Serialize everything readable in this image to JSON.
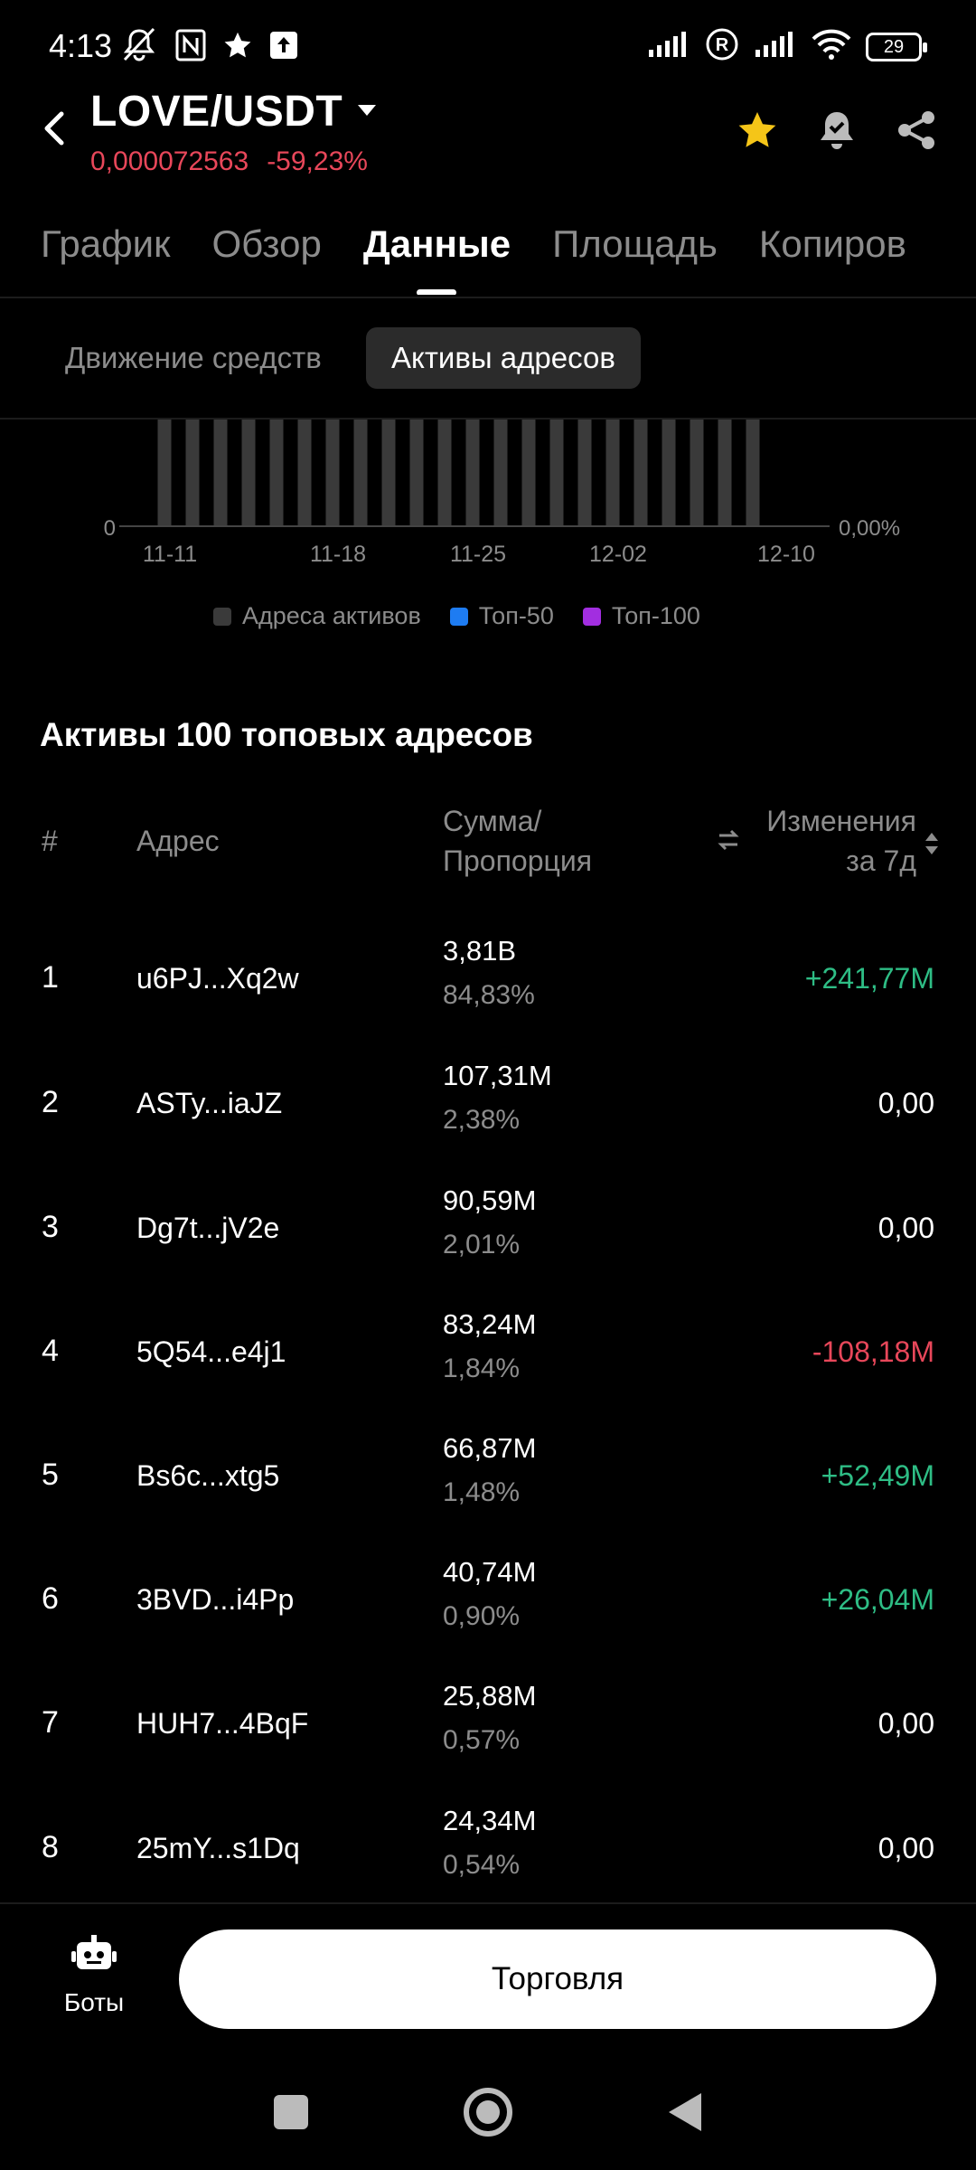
{
  "status_bar": {
    "time": "4:13",
    "battery": "29"
  },
  "header": {
    "pair": "LOVE/USDT",
    "price": "0,000072563",
    "change": "-59,23%"
  },
  "tabs": [
    {
      "label": "График"
    },
    {
      "label": "Обзор"
    },
    {
      "label": "Данные"
    },
    {
      "label": "Площадь"
    },
    {
      "label": "Копиров"
    }
  ],
  "segments": {
    "inactive": "Движение средств",
    "active": "Активы адресов"
  },
  "chart_data": {
    "type": "bar",
    "x_tick_labels": [
      "11-11",
      "11-18",
      "11-25",
      "12-02",
      "12-10"
    ],
    "y_left_tick_labels": [
      "0"
    ],
    "y_right_tick_labels": [
      "0,00%"
    ],
    "bar_count": 22,
    "legend": [
      {
        "name": "Адреса активов",
        "color": "#3a3a3a"
      },
      {
        "name": "Топ-50",
        "color": "#1e7cf2"
      },
      {
        "name": "Топ-100",
        "color": "#a22ee0"
      }
    ]
  },
  "table": {
    "title": "Активы 100 топовых адресов",
    "headers": {
      "num": "#",
      "address": "Адрес",
      "amount_line1": "Сумма/",
      "amount_line2": "Пропорция",
      "change_line1": "Изменения",
      "change_line2": "за 7д"
    },
    "rows": [
      {
        "num": "1",
        "address": "u6PJ...Xq2w",
        "amount": "3,81B",
        "pct": "84,83%",
        "change": "+241,77M",
        "dir": "pos"
      },
      {
        "num": "2",
        "address": "ASTy...iaJZ",
        "amount": "107,31M",
        "pct": "2,38%",
        "change": "0,00",
        "dir": "zero"
      },
      {
        "num": "3",
        "address": "Dg7t...jV2e",
        "amount": "90,59M",
        "pct": "2,01%",
        "change": "0,00",
        "dir": "zero"
      },
      {
        "num": "4",
        "address": "5Q54...e4j1",
        "amount": "83,24M",
        "pct": "1,84%",
        "change": "-108,18M",
        "dir": "neg"
      },
      {
        "num": "5",
        "address": "Bs6c...xtg5",
        "amount": "66,87M",
        "pct": "1,48%",
        "change": "+52,49M",
        "dir": "pos"
      },
      {
        "num": "6",
        "address": "3BVD...i4Pp",
        "amount": "40,74M",
        "pct": "0,90%",
        "change": "+26,04M",
        "dir": "pos"
      },
      {
        "num": "7",
        "address": "HUH7...4BqF",
        "amount": "25,88M",
        "pct": "0,57%",
        "change": "0,00",
        "dir": "zero"
      },
      {
        "num": "8",
        "address": "25mY...s1Dq",
        "amount": "24,34M",
        "pct": "0,54%",
        "change": "0,00",
        "dir": "zero"
      }
    ]
  },
  "bottom": {
    "bots_label": "Боты",
    "trade_label": "Торговля"
  }
}
